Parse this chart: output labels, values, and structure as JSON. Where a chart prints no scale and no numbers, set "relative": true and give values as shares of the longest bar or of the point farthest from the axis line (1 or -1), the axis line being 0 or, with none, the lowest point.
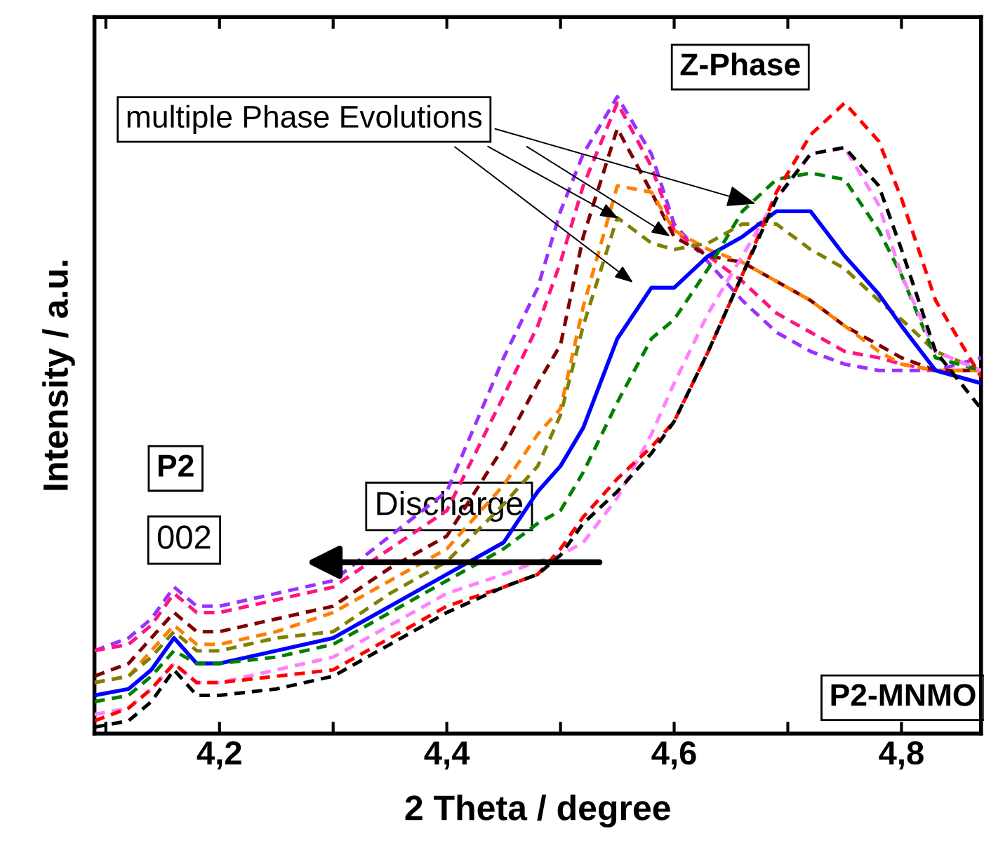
{
  "chart_data": {
    "type": "line",
    "relative": true,
    "xlabel": "2 Theta / degree",
    "ylabel": "Intensity / a.u.",
    "x": [
      4.09,
      4.12,
      4.14,
      4.16,
      4.18,
      4.2,
      4.25,
      4.3,
      4.35,
      4.4,
      4.45,
      4.48,
      4.5,
      4.52,
      4.55,
      4.58,
      4.6,
      4.63,
      4.66,
      4.69,
      4.72,
      4.75,
      4.78,
      4.8,
      4.83,
      4.87
    ],
    "xlim": [
      4.09,
      4.87
    ],
    "xticks": [
      {
        "value": 4.1,
        "label": null
      },
      {
        "value": 4.2,
        "label": "4,2"
      },
      {
        "value": 4.3,
        "label": null
      },
      {
        "value": 4.4,
        "label": "4,4"
      },
      {
        "value": 4.5,
        "label": null
      },
      {
        "value": 4.6,
        "label": "4,6"
      },
      {
        "value": 4.7,
        "label": null
      },
      {
        "value": 4.8,
        "label": "4,8"
      }
    ],
    "tick_labels": "x",
    "grid": false,
    "legend": false,
    "marker": "none",
    "series": [
      {
        "color": "#9b30ff",
        "line_style": "dashed",
        "values": [
          0.13,
          0.15,
          0.18,
          0.23,
          0.2,
          0.2,
          0.22,
          0.24,
          0.31,
          0.38,
          0.59,
          0.7,
          0.82,
          0.91,
          1.0,
          0.91,
          0.8,
          0.74,
          0.68,
          0.63,
          0.6,
          0.58,
          0.57,
          0.57,
          0.57,
          0.59
        ]
      },
      {
        "color": "#ff1480",
        "line_style": "dashed",
        "values": [
          0.13,
          0.14,
          0.17,
          0.22,
          0.19,
          0.19,
          0.21,
          0.23,
          0.29,
          0.35,
          0.53,
          0.64,
          0.74,
          0.86,
          0.99,
          0.89,
          0.79,
          0.75,
          0.71,
          0.66,
          0.63,
          0.6,
          0.59,
          0.58,
          0.57,
          0.57
        ]
      },
      {
        "color": "#800000",
        "line_style": "dashed",
        "values": [
          0.09,
          0.11,
          0.15,
          0.19,
          0.16,
          0.16,
          0.18,
          0.2,
          0.26,
          0.31,
          0.45,
          0.55,
          0.61,
          0.78,
          0.95,
          0.85,
          0.78,
          0.75,
          0.74,
          0.71,
          0.68,
          0.64,
          0.61,
          0.59,
          0.57,
          0.57
        ]
      },
      {
        "color": "#ff8000",
        "line_style": "dashed",
        "values": [
          0.08,
          0.09,
          0.13,
          0.17,
          0.14,
          0.14,
          0.16,
          0.19,
          0.24,
          0.29,
          0.39,
          0.47,
          0.51,
          0.67,
          0.86,
          0.85,
          0.79,
          0.76,
          0.74,
          0.71,
          0.68,
          0.64,
          0.6,
          0.58,
          0.57,
          0.57
        ]
      },
      {
        "color": "#808000",
        "line_style": "dashed",
        "values": [
          0.08,
          0.09,
          0.12,
          0.16,
          0.13,
          0.13,
          0.15,
          0.16,
          0.22,
          0.27,
          0.36,
          0.42,
          0.5,
          0.64,
          0.81,
          0.77,
          0.76,
          0.77,
          0.8,
          0.8,
          0.76,
          0.73,
          0.68,
          0.65,
          0.6,
          0.57
        ]
      },
      {
        "color": "#0000ff",
        "line_style": "solid",
        "values": [
          0.06,
          0.07,
          0.1,
          0.15,
          0.11,
          0.11,
          0.13,
          0.15,
          0.2,
          0.25,
          0.3,
          0.38,
          0.42,
          0.48,
          0.62,
          0.7,
          0.7,
          0.75,
          0.78,
          0.82,
          0.82,
          0.75,
          0.69,
          0.64,
          0.57,
          0.55
        ]
      },
      {
        "color": "#008000",
        "line_style": "dashed",
        "values": [
          0.05,
          0.06,
          0.09,
          0.13,
          0.11,
          0.11,
          0.12,
          0.14,
          0.19,
          0.24,
          0.29,
          0.33,
          0.35,
          0.41,
          0.52,
          0.62,
          0.65,
          0.73,
          0.82,
          0.87,
          0.88,
          0.87,
          0.79,
          0.72,
          0.59,
          0.57
        ]
      },
      {
        "color": "#ff80ff",
        "line_style": "dashed",
        "values": [
          0.03,
          0.04,
          0.07,
          0.11,
          0.08,
          0.08,
          0.1,
          0.12,
          0.17,
          0.22,
          0.25,
          0.27,
          0.28,
          0.3,
          0.37,
          0.47,
          0.55,
          0.66,
          0.75,
          0.84,
          0.91,
          0.92,
          0.83,
          0.72,
          0.6,
          0.57
        ]
      },
      {
        "color": "#ff0000",
        "line_style": "dashed",
        "values": [
          0.02,
          0.04,
          0.07,
          0.11,
          0.08,
          0.08,
          0.09,
          0.1,
          0.15,
          0.2,
          0.23,
          0.25,
          0.29,
          0.34,
          0.4,
          0.45,
          0.49,
          0.6,
          0.72,
          0.85,
          0.94,
          0.99,
          0.93,
          0.84,
          0.68,
          0.56
        ]
      },
      {
        "color": "#000000",
        "line_style": "dashed",
        "values": [
          0.01,
          0.02,
          0.05,
          0.1,
          0.06,
          0.06,
          0.07,
          0.09,
          0.14,
          0.19,
          0.23,
          0.25,
          0.28,
          0.33,
          0.38,
          0.44,
          0.49,
          0.6,
          0.72,
          0.84,
          0.91,
          0.92,
          0.86,
          0.76,
          0.6,
          0.51
        ]
      }
    ],
    "annotations": [
      {
        "text": "multiple Phase Evolutions",
        "x": 4.675,
        "y": 0.83
      },
      "Z-Phase",
      "P2",
      "002",
      "Discharge",
      "P2-MNMO"
    ]
  }
}
